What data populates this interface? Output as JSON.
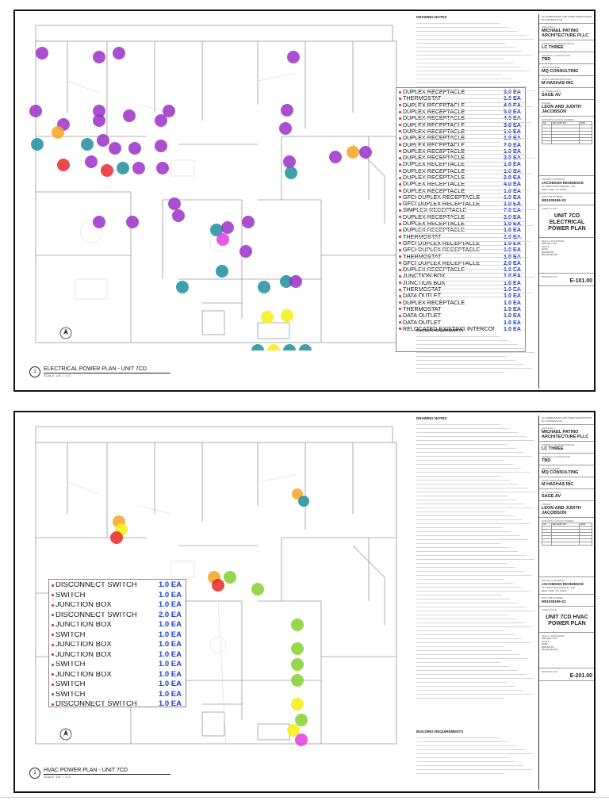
{
  "colors": {
    "purple": "#9b30c8",
    "teal": "#1f8f9a",
    "red": "#e8282c",
    "orange": "#f5a623",
    "yellow": "#f5ef1e",
    "green": "#8cd23c",
    "magenta": "#e73ae0",
    "legend_qty": "#1d3fd0"
  },
  "sheets": [
    {
      "title_block": {
        "header_note": "ALL DIMENSIONS AND THEIR VERIFICATION BY CONTRACTOR",
        "architect_label": "ARCHITECT",
        "architect": "MICHAEL PATINO ARCHITECTURE PLLC",
        "owner_rep_label": "OWNER'S REPRESENTATIVE",
        "owner_rep": "LC THREE",
        "gc_label": "GENERAL CONTRACTOR",
        "gc": "TBD",
        "mep_label": "MEP ENGINEER",
        "mep": "MQ CONSULTING",
        "ee_label": "FILING REPRESENTATIVE",
        "ee": "M HASHAS INC",
        "av_label": "AV CONSULTANT",
        "av": "SAGE AV",
        "owner_label": "OWNER",
        "owner": "LEON AND JUDITH JACOBSON",
        "rev_label": "DOB APPLICATION NUMBER",
        "rev_headers": [
          "NO",
          "DESCRIPTION",
          "DATE"
        ],
        "project_label": "PROJECT ADDRESS",
        "project": "JACOBSON RESIDENCE",
        "address1": "277 WEST END AVENUE, 7CD",
        "address2": "NEW YORK, NY 10023",
        "job_label": "DOB JOB NUMBER",
        "job": "M01035196-S2",
        "sheet_title_label": "SHEET TITLE",
        "sheet_title": "UNIT 7CD ELECTRICAL POWER PLAN",
        "seal_label": "SEAL & SIGNATURE",
        "info": [
          "PROJECT NO.",
          "SCALE",
          "DATE",
          "DRAWN BY",
          "REVIEWED BY"
        ],
        "sheet_no_label": "DRAWING NO.",
        "sheet_no": "E-101.00"
      },
      "notes_title": "DRAWING NOTES",
      "requirements_title": "BUILDING REQUIREMENTS",
      "plan_title": "ELECTRICAL POWER PLAN - UNIT 7CD",
      "plan_number": "1",
      "plan_scale": "SCALE: 1/8\" = 1'-0\"",
      "legend": [
        {
          "label": "DUPLEX RECEPTACLE",
          "qty": "3.0 EA"
        },
        {
          "label": "THERMOSTAT",
          "qty": "1.0 EA"
        },
        {
          "label": "DUPLEX RECEPTACLE",
          "qty": "4.0 EA"
        },
        {
          "label": "DUPLEX RECEPTACLE",
          "qty": "5.0 EA"
        },
        {
          "label": "DUPLEX RECEPTACLE",
          "qty": "4.0 EA"
        },
        {
          "label": "DUPLEX RECEPTACLE",
          "qty": "3.0 EA"
        },
        {
          "label": "DUPLEX RECEPTACLE",
          "qty": "1.0 EA"
        },
        {
          "label": "DUPLEX RECEPTACLE",
          "qty": "1.0 EA"
        },
        {
          "label": "DUPLEX RECEPTACLE",
          "qty": "2.0 EA"
        },
        {
          "label": "DUPLEX RECEPTACLE",
          "qty": "1.0 EA"
        },
        {
          "label": "DUPLEX RECEPTACLE",
          "qty": "2.0 EA"
        },
        {
          "label": "DUPLEX RECEPTACLE",
          "qty": "1.0 EA"
        },
        {
          "label": "DUPLEX RECEPTACLE",
          "qty": "1.0 EA"
        },
        {
          "label": "DUPLEX RECEPTACLE",
          "qty": "2.0 EA"
        },
        {
          "label": "DUPLEX RECEPTACLE",
          "qty": "4.0 EA"
        },
        {
          "label": "DUPLEX RECEPTACLE",
          "qty": "1.0 EA"
        },
        {
          "label": "GFCI DUPLEX RECEPTACLE",
          "qty": "1.0 EA"
        },
        {
          "label": "GFCI DUPLEX RECEPTACLE",
          "qty": "1.0 EA"
        },
        {
          "label": "SIMPLEX RECEPTACLE",
          "qty": "7.0 EA"
        },
        {
          "label": "DUPLEX RECEPTACLE",
          "qty": "2.0 EA"
        },
        {
          "label": "DUPLEX RECEPTACLE",
          "qty": "1.0 EA"
        },
        {
          "label": "DUPLEX RECEPTACLE",
          "qty": "1.0 EA"
        },
        {
          "label": "THERMOSTAT",
          "qty": "1.0 EA"
        },
        {
          "label": "GFCI DUPLEX RECEPTACLE",
          "qty": "1.0 EA"
        },
        {
          "label": "GFCI DUPLEX RECEPTACLE",
          "qty": "1.0 EA"
        },
        {
          "label": "THERMOSTAT",
          "qty": "1.0 EA"
        },
        {
          "label": "GFCI DUPLEX RECEPTACLE",
          "qty": "2.0 EA"
        },
        {
          "label": "DUPLEX RECEPTACLE",
          "qty": "1.0 EA"
        },
        {
          "label": "JUNCTION BOX",
          "qty": "1.0 EA"
        },
        {
          "label": "JUNCTION BOX",
          "qty": "1.0 EA"
        },
        {
          "label": "THERMOSTAT",
          "qty": "1.0 EA"
        },
        {
          "label": "DATA OUTLET",
          "qty": "1.0 EA"
        },
        {
          "label": "DUPLEX RECEPTACLE",
          "qty": "1.0 EA"
        },
        {
          "label": "THERMOSTAT",
          "qty": "1.0 EA"
        },
        {
          "label": "DATA OUTLET",
          "qty": "1.0 EA"
        },
        {
          "label": "DATA OUTLET",
          "qty": "1.0 EA"
        },
        {
          "label": "RELOCATED EXISTING INTERCOM",
          "qty": "1.0 EA"
        }
      ]
    },
    {
      "title_block": {
        "header_note": "ALL DIMENSIONS AND THEIR VERIFICATION BY CONTRACTOR",
        "architect_label": "ARCHITECT",
        "architect": "MICHAEL PATINO ARCHITECTURE PLLC",
        "owner_rep_label": "OWNER'S REPRESENTATIVE",
        "owner_rep": "LC THREE",
        "gc_label": "GENERAL CONTRACTOR",
        "gc": "TBD",
        "mep_label": "MEP ENGINEER",
        "mep": "MQ CONSULTING",
        "ee_label": "FILING REPRESENTATIVE",
        "ee": "M HASHAS INC",
        "av_label": "AV CONSULTANT",
        "av": "SAGE AV",
        "owner_label": "OWNER",
        "owner": "LEON AND JUDITH JACOBSON",
        "rev_label": "DOB APPLICATION NUMBER",
        "rev_headers": [
          "NO",
          "DESCRIPTION",
          "DATE"
        ],
        "project_label": "PROJECT ADDRESS",
        "project": "JACOBSON RESIDENCE",
        "address1": "277 WEST END AVENUE, 7CD",
        "address2": "NEW YORK, NY 10023",
        "job_label": "DOB JOB NUMBER",
        "job": "M01035196-S2",
        "sheet_title_label": "SHEET TITLE",
        "sheet_title": "UNIT 7CD HVAC POWER PLAN",
        "seal_label": "SEAL & SIGNATURE",
        "info": [
          "PROJECT NO.",
          "SCALE",
          "DATE",
          "DRAWN BY",
          "REVIEWED BY"
        ],
        "sheet_no_label": "DRAWING NO.",
        "sheet_no": "E-201.00"
      },
      "notes_title": "DRAWING NOTES",
      "requirements_title": "BUILDING REQUIREMENTS",
      "plan_title": "HVAC POWER PLAN - UNIT 7CD",
      "plan_number": "1",
      "plan_scale": "SCALE: 1/8\" = 1'-0\"",
      "legend": [
        {
          "label": "DISCONNECT SWITCH",
          "qty": "1.0 EA"
        },
        {
          "label": "SWITCH",
          "qty": "1.0 EA"
        },
        {
          "label": "JUNCTION BOX",
          "qty": "1.0 EA"
        },
        {
          "label": "DISCONNECT SWITCH",
          "qty": "2.0 EA"
        },
        {
          "label": "JUNCTION BOX",
          "qty": "1.0 EA"
        },
        {
          "label": "SWITCH",
          "qty": "1.0 EA"
        },
        {
          "label": "JUNCTION BOX",
          "qty": "1.0 EA"
        },
        {
          "label": "JUNCTION BOX",
          "qty": "1.0 EA"
        },
        {
          "label": "SWITCH",
          "qty": "1.0 EA"
        },
        {
          "label": "JUNCTION BOX",
          "qty": "1.0 EA"
        },
        {
          "label": "SWITCH",
          "qty": "1.0 EA"
        },
        {
          "label": "SWITCH",
          "qty": "1.0 EA"
        },
        {
          "label": "DISCONNECT SWITCH",
          "qty": "1.0 EA"
        }
      ]
    }
  ]
}
